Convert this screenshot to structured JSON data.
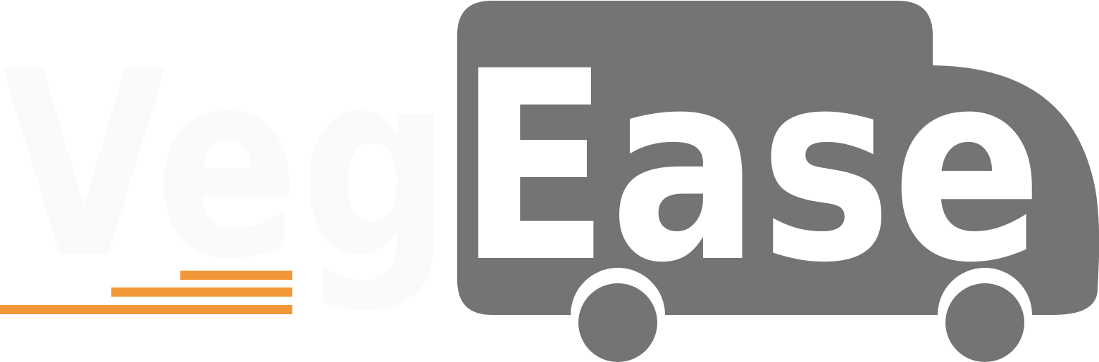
{
  "logo": {
    "word_left": "Veg",
    "word_right": "Ease",
    "colors": {
      "truck_body": "#727475",
      "text_on_truck": "#ffffff",
      "text_left": "#fafafa",
      "speed_lines": "#f39637",
      "background": "#ffffff"
    },
    "icons": [
      "delivery-truck-icon",
      "speed-lines-icon",
      "wheel-icon"
    ]
  }
}
